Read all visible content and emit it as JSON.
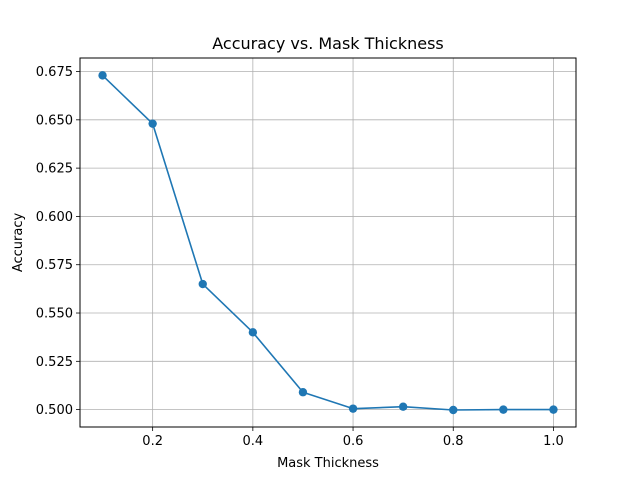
{
  "chart_data": {
    "type": "line",
    "title": "Accuracy vs. Mask Thickness",
    "xlabel": "Mask Thickness",
    "ylabel": "Accuracy",
    "x": [
      0.1,
      0.2,
      0.3,
      0.4,
      0.5,
      0.6,
      0.7,
      0.8,
      0.9,
      1.0
    ],
    "series": [
      {
        "values": [
          0.673,
          0.648,
          0.565,
          0.54,
          0.509,
          0.5005,
          0.5015,
          0.4998,
          0.5,
          0.5
        ],
        "color": "#1f77b4",
        "marker": "circle"
      }
    ],
    "xlim": [
      0.055,
      1.045
    ],
    "ylim": [
      0.491,
      0.682
    ],
    "xticks": [
      0.2,
      0.4,
      0.6,
      0.8,
      1.0
    ],
    "xtick_labels": [
      "0.2",
      "0.4",
      "0.6",
      "0.8",
      "1.0"
    ],
    "yticks": [
      0.5,
      0.525,
      0.55,
      0.575,
      0.6,
      0.625,
      0.65,
      0.675
    ],
    "ytick_labels": [
      "0.500",
      "0.525",
      "0.550",
      "0.575",
      "0.600",
      "0.625",
      "0.650",
      "0.675"
    ],
    "grid": true,
    "legend": "none"
  }
}
